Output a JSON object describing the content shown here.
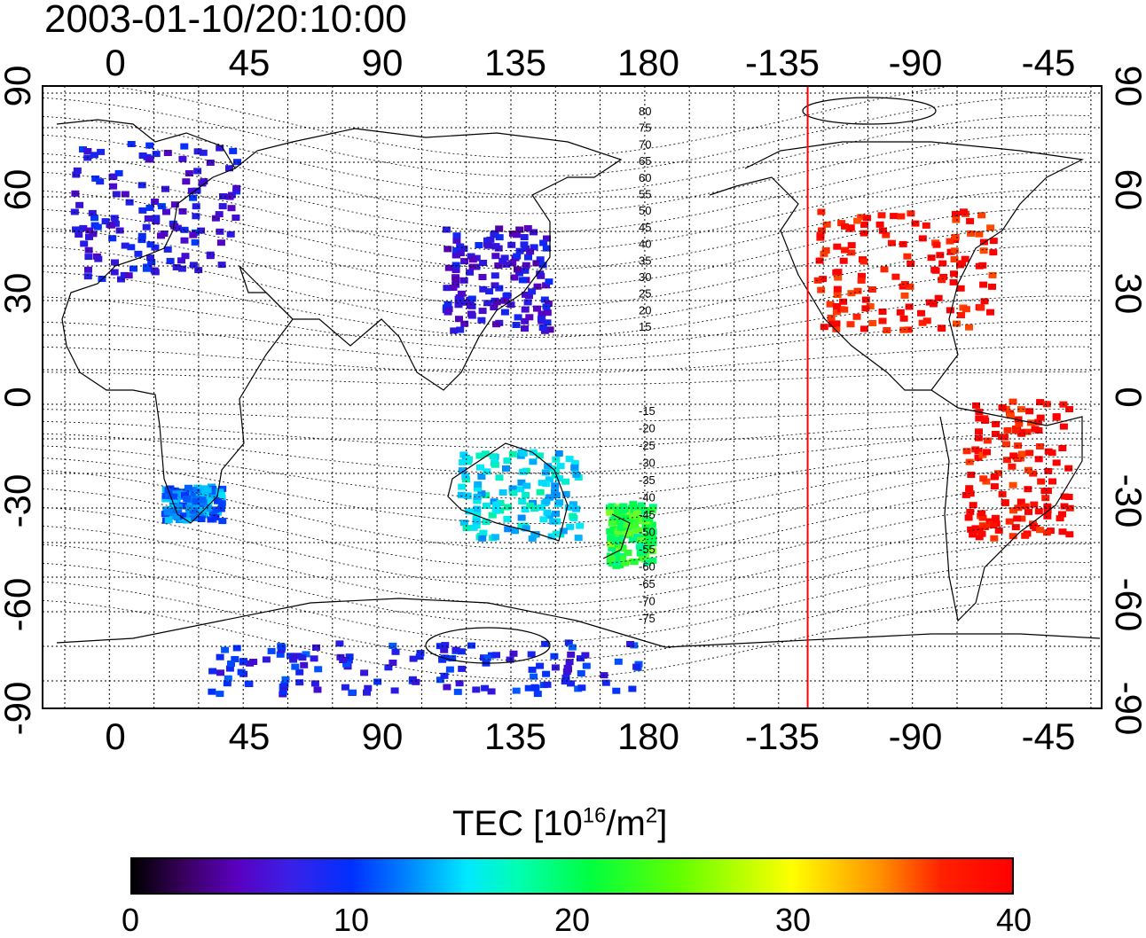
{
  "title": "2003-01-10/20:10:00",
  "lon_labels": [
    "0",
    "45",
    "90",
    "135",
    "180",
    "-135",
    "-90",
    "-45"
  ],
  "lat_labels": [
    "90",
    "60",
    "30",
    "0",
    "-30",
    "-60",
    "-90"
  ],
  "contour_labels_north": [
    "80",
    "75",
    "70",
    "65",
    "60",
    "55",
    "50",
    "45",
    "40",
    "35",
    "30",
    "25",
    "20",
    "15"
  ],
  "contour_labels_south": [
    "-15",
    "-20",
    "-25",
    "-30",
    "-35",
    "-40",
    "-45",
    "-50",
    "-55",
    "-60",
    "-65",
    "-70",
    "-75"
  ],
  "colorbar": {
    "title_main": "TEC  [10",
    "title_exp1": "16",
    "title_mid": "/m",
    "title_exp2": "2",
    "title_end": "]",
    "ticks": [
      "0",
      "10",
      "20",
      "30",
      "40"
    ],
    "min": 0,
    "max": 40
  },
  "marker": {
    "longitude": -127,
    "color": "#ff0000"
  },
  "colors": {
    "scale": [
      "#000000",
      "#5a00c0",
      "#0030ff",
      "#00e8ff",
      "#00ff40",
      "#ffff00",
      "#ff9000",
      "#ff0000"
    ]
  },
  "tec_regions": [
    {
      "name": "europe",
      "lon": [
        -15,
        40
      ],
      "lat": [
        35,
        75
      ],
      "tec": 9
    },
    {
      "name": "east-asia",
      "lon": [
        110,
        145
      ],
      "lat": [
        20,
        50
      ],
      "tec": 8
    },
    {
      "name": "north-america",
      "lon": [
        -125,
        -65
      ],
      "lat": [
        20,
        55
      ],
      "tec": 40
    },
    {
      "name": "south-america",
      "lon": [
        -75,
        -40
      ],
      "lat": [
        -40,
        0
      ],
      "tec": 40
    },
    {
      "name": "australia",
      "lon": [
        115,
        155
      ],
      "lat": [
        -40,
        -15
      ],
      "tec": 17
    },
    {
      "name": "new-zealand",
      "lon": [
        165,
        180
      ],
      "lat": [
        -48,
        -30
      ],
      "tec": 23
    },
    {
      "name": "southern-africa",
      "lon": [
        15,
        35
      ],
      "lat": [
        -35,
        -25
      ],
      "tec": 14
    },
    {
      "name": "antarctica",
      "lon": [
        30,
        175
      ],
      "lat": [
        -85,
        -70
      ],
      "tec": 10
    }
  ]
}
